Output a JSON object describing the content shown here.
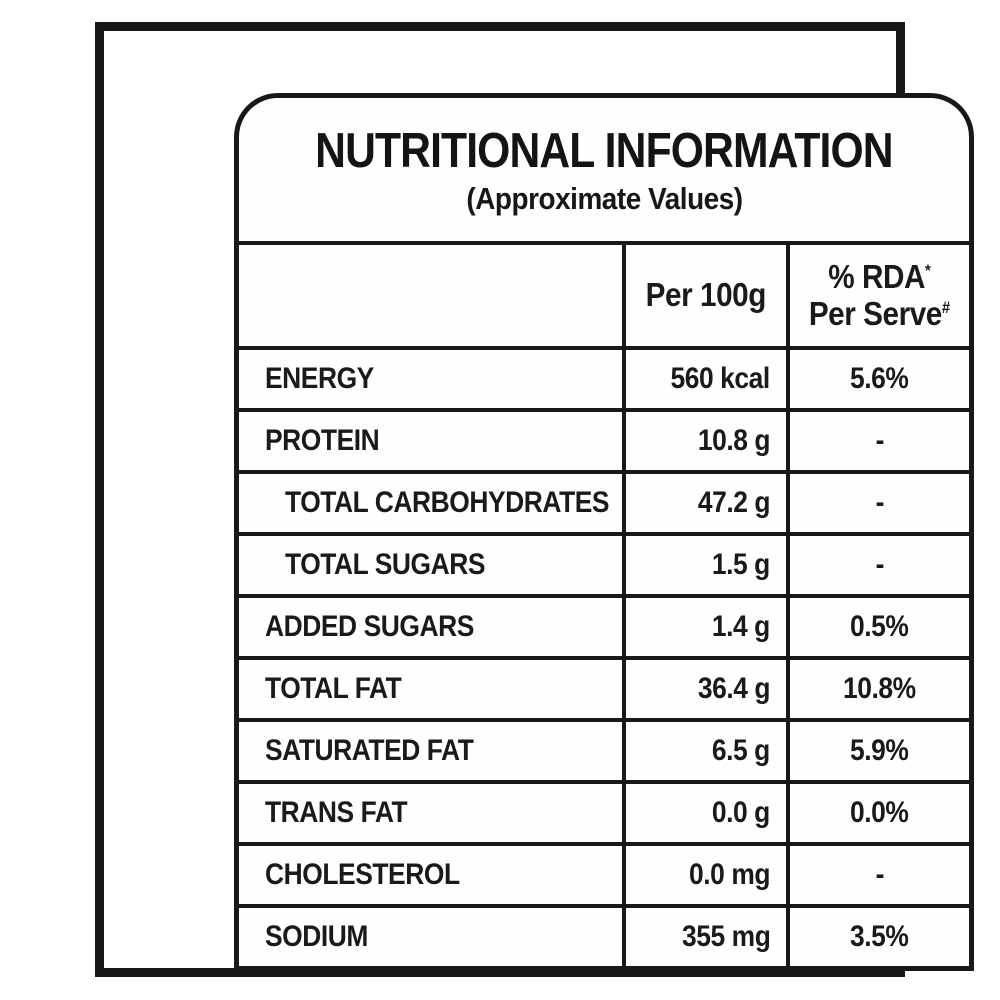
{
  "panel": {
    "title": "NUTRITIONAL INFORMATION",
    "subtitle": "(Approximate Values)",
    "columns": {
      "nutrient_header": "",
      "per_100g": "Per 100g",
      "rda_line1": "% RDA",
      "rda_marker": "*",
      "rda_line2": "Per Serve",
      "serve_marker": "#"
    },
    "rows": [
      {
        "label": "ENERGY",
        "per_100g": "560 kcal",
        "rda": "5.6%"
      },
      {
        "label": "PROTEIN",
        "per_100g": "10.8 g",
        "rda": "-"
      },
      {
        "label": "TOTAL CARBOHYDRATES",
        "per_100g": "47.2 g",
        "rda": "-"
      },
      {
        "label": "TOTAL SUGARS",
        "per_100g": "1.5 g",
        "rda": "-"
      },
      {
        "label": "ADDED SUGARS",
        "per_100g": "1.4 g",
        "rda": "0.5%"
      },
      {
        "label": "TOTAL FAT",
        "per_100g": "36.4 g",
        "rda": "10.8%"
      },
      {
        "label": "SATURATED FAT",
        "per_100g": "6.5 g",
        "rda": "5.9%"
      },
      {
        "label": "TRANS FAT",
        "per_100g": "0.0 g",
        "rda": "0.0%"
      },
      {
        "label": "CHOLESTEROL",
        "per_100g": "0.0 mg",
        "rda": "-"
      },
      {
        "label": "SODIUM",
        "per_100g": "355 mg",
        "rda": "3.5%"
      }
    ]
  },
  "colors": {
    "ink": "#181818",
    "paper": "#ffffff"
  }
}
